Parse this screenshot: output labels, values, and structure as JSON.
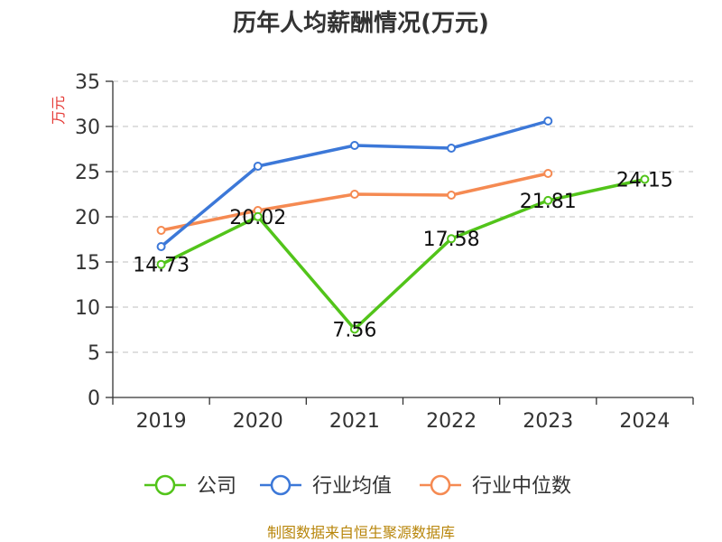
{
  "chart_data": {
    "type": "line",
    "title": "历年人均薪酬情况(万元)",
    "ylabel": "万元",
    "xlabel": "",
    "categories": [
      "2019",
      "2020",
      "2021",
      "2022",
      "2023",
      "2024"
    ],
    "ylim": [
      0,
      35
    ],
    "yticks": [
      0,
      5,
      10,
      15,
      20,
      25,
      30,
      35
    ],
    "grid": true,
    "legend_position": "bottom",
    "series": [
      {
        "name": "公司",
        "color": "#52c41a",
        "values": [
          14.73,
          20.02,
          7.56,
          17.58,
          21.81,
          24.15
        ],
        "labels": [
          "14.73",
          "20.02",
          "7.56",
          "17.58",
          "21.81",
          "24.15"
        ]
      },
      {
        "name": "行业均值",
        "color": "#3c78d8",
        "values": [
          16.7,
          25.6,
          27.9,
          27.6,
          30.6,
          null
        ]
      },
      {
        "name": "行业中位数",
        "color": "#f58a52",
        "values": [
          18.5,
          20.7,
          22.5,
          22.4,
          24.8,
          null
        ]
      }
    ]
  },
  "source": "制图数据来自恒生聚源数据库",
  "colors": {
    "ylabel": "#e53935",
    "source": "#b8860b",
    "grid": "#cccccc",
    "axis": "#333333"
  }
}
